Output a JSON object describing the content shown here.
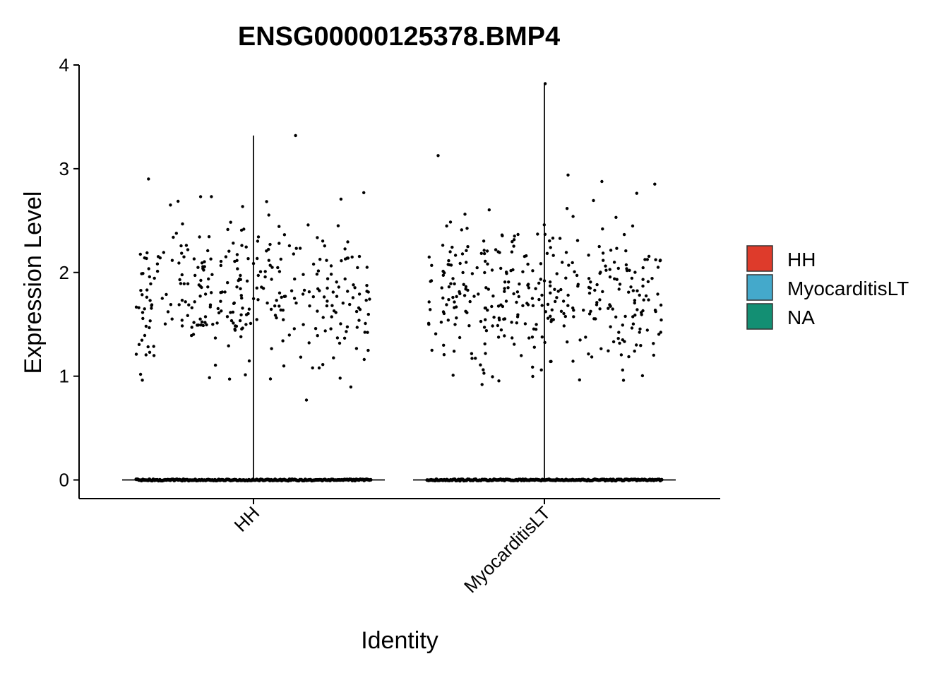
{
  "chart_data": {
    "type": "violin",
    "title": "ENSG00000125378.BMP4",
    "xlabel": "Identity",
    "ylabel": "Expression Level",
    "categories": [
      "HH",
      "MyocarditisLT"
    ],
    "ylim": [
      -0.18,
      4.0
    ],
    "yticks": [
      0,
      1,
      2,
      3,
      4
    ],
    "grid": false,
    "legend": {
      "position": "right",
      "entries": [
        {
          "name": "HH",
          "color": "#DE3B2B"
        },
        {
          "name": "MyocarditisLT",
          "color": "#44A9CB"
        },
        {
          "name": "NA",
          "color": "#138F73"
        }
      ]
    },
    "series": [
      {
        "category": "HH",
        "max": 3.32,
        "zero_cells": "many",
        "nonzero_range": [
          0.77,
          3.32
        ],
        "nonzero_center": 1.8,
        "nonzero_points_approx": 330
      },
      {
        "category": "MyocarditisLT",
        "max": 3.82,
        "zero_cells": "many",
        "nonzero_range": [
          0.92,
          3.82
        ],
        "nonzero_center": 1.8,
        "nonzero_points_approx": 360
      }
    ]
  }
}
